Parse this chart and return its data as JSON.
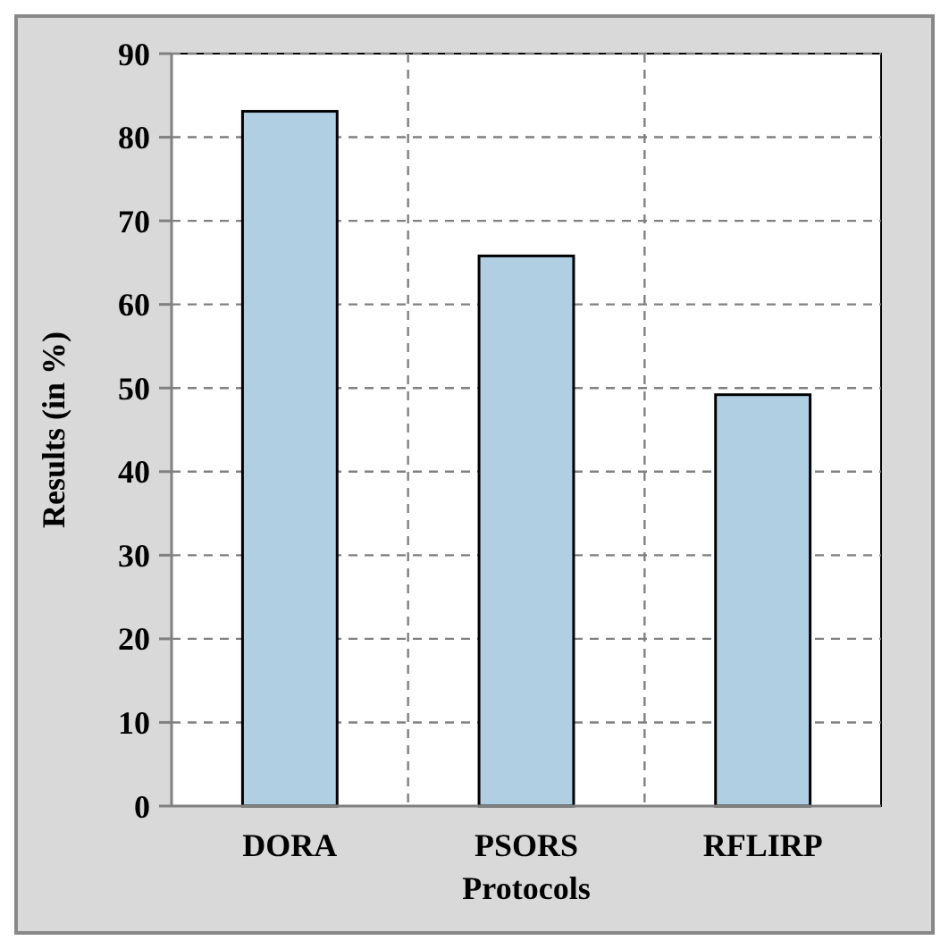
{
  "chart_data": {
    "type": "bar",
    "xlabel": "Protocols",
    "ylabel": "Results (in %)",
    "categories": [
      "DORA",
      "PSORS",
      "RFLIRP"
    ],
    "values": [
      83.1,
      65.8,
      49.2
    ],
    "color": "#b0cfe2",
    "ylim": [
      0,
      90
    ],
    "yticks": [
      0,
      10,
      20,
      30,
      40,
      50,
      60,
      70,
      80,
      90
    ],
    "grid": true
  }
}
